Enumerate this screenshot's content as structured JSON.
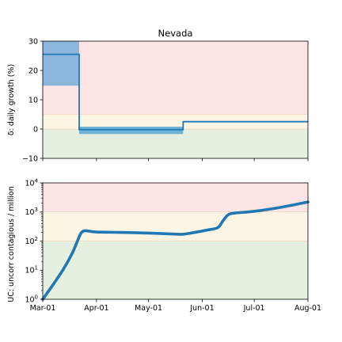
{
  "chart_data": [
    {
      "type": "line",
      "panel": "top",
      "title": "Nevada",
      "ylabel": "δ: daily growth (%)",
      "ylim": [
        -10,
        30
      ],
      "yticks": [
        -10,
        0,
        10,
        20,
        30
      ],
      "ytick_labels": [
        "−10",
        "0",
        "10",
        "20",
        "30"
      ],
      "x_dates": [
        "2020-03-01",
        "2020-04-01",
        "2020-05-01",
        "2020-06-01",
        "2020-07-01",
        "2020-08-01"
      ],
      "bands": [
        {
          "from": -10,
          "to": 0,
          "color": "#e5f0e1"
        },
        {
          "from": 0,
          "to": 5,
          "color": "#fdf5e4"
        },
        {
          "from": 5,
          "to": 30,
          "color": "#fde4e5"
        }
      ],
      "series": [
        {
          "values": [
            {
              "x": "2020-03-01",
              "y": 25.5
            },
            {
              "x": "2020-03-22",
              "y": 25.5
            },
            {
              "x": "2020-03-22",
              "y": -0.2
            },
            {
              "x": "2020-05-21",
              "y": -0.2
            },
            {
              "x": "2020-05-21",
              "y": 2.5
            },
            {
              "x": "2020-08-01",
              "y": 2.5
            }
          ],
          "color": "#1f77b4"
        }
      ],
      "confidence": [
        {
          "x_from": "2020-03-01",
          "x_to": "2020-03-22",
          "lo": 14.8,
          "hi": 30,
          "color": "#8db6de"
        },
        {
          "x_from": "2020-03-22",
          "x_to": "2020-05-21",
          "lo": -1.7,
          "hi": 0.8,
          "color": "#6cb3d6"
        },
        {
          "x_from": "2020-05-21",
          "x_to": "2020-08-01",
          "lo": 2.3,
          "hi": 2.8,
          "color": "#6cb3d6"
        }
      ]
    },
    {
      "type": "line",
      "panel": "bottom",
      "ylabel": "UC: uncorr contagious / million",
      "yscale": "log",
      "ylim": [
        1,
        10000
      ],
      "yticks": [
        1,
        10,
        100,
        1000,
        10000
      ],
      "ytick_labels": [
        {
          "base": "10",
          "exp": "0"
        },
        {
          "base": "10",
          "exp": "1"
        },
        {
          "base": "10",
          "exp": "2"
        },
        {
          "base": "10",
          "exp": "3"
        },
        {
          "base": "10",
          "exp": "4"
        }
      ],
      "x_dates": [
        "2020-03-01",
        "2020-04-01",
        "2020-05-01",
        "2020-06-01",
        "2020-07-01",
        "2020-08-01"
      ],
      "x_tick_labels": [
        "Mar-01",
        "Apr-01",
        "May-01",
        "Jun-01",
        "Jul-01",
        "Aug-01"
      ],
      "bands": [
        {
          "from": 1,
          "to": 100,
          "color": "#e5f0e1"
        },
        {
          "from": 100,
          "to": 1000,
          "color": "#fdf5e4"
        },
        {
          "from": 1000,
          "to": 10000,
          "color": "#fde4e5"
        }
      ],
      "series": [
        {
          "values": [
            {
              "x": "2020-03-01",
              "y": 1.0
            },
            {
              "x": "2020-03-07",
              "y": 3.2
            },
            {
              "x": "2020-03-13",
              "y": 11
            },
            {
              "x": "2020-03-18",
              "y": 38
            },
            {
              "x": "2020-03-21",
              "y": 100
            },
            {
              "x": "2020-03-23",
              "y": 185
            },
            {
              "x": "2020-03-25",
              "y": 225
            },
            {
              "x": "2020-03-28",
              "y": 218
            },
            {
              "x": "2020-04-01",
              "y": 205
            },
            {
              "x": "2020-04-15",
              "y": 198
            },
            {
              "x": "2020-05-01",
              "y": 188
            },
            {
              "x": "2020-05-15",
              "y": 175
            },
            {
              "x": "2020-05-21",
              "y": 172
            },
            {
              "x": "2020-05-28",
              "y": 200
            },
            {
              "x": "2020-06-04",
              "y": 240
            },
            {
              "x": "2020-06-10",
              "y": 290
            },
            {
              "x": "2020-06-13",
              "y": 500
            },
            {
              "x": "2020-06-16",
              "y": 800
            },
            {
              "x": "2020-06-20",
              "y": 920
            },
            {
              "x": "2020-07-01",
              "y": 1050
            },
            {
              "x": "2020-07-15",
              "y": 1400
            },
            {
              "x": "2020-08-01",
              "y": 2200
            }
          ],
          "color": "#1f77b4"
        }
      ]
    }
  ]
}
